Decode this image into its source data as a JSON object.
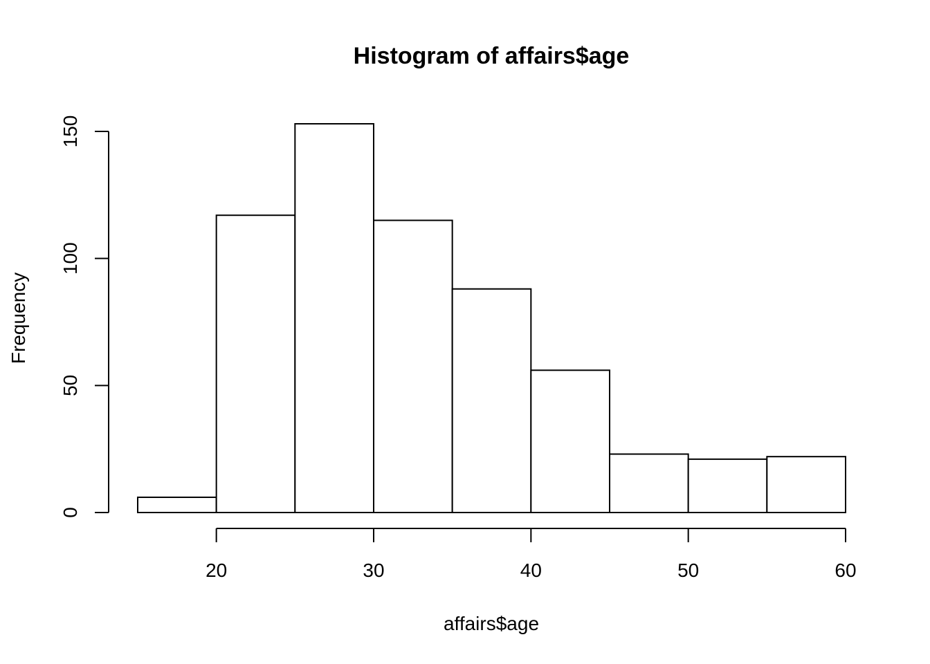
{
  "chart_data": {
    "type": "bar",
    "title": "Histogram of affairs$age",
    "xlabel": "affairs$age",
    "ylabel": "Frequency",
    "bins": [
      {
        "start": 15,
        "end": 20,
        "count": 6
      },
      {
        "start": 20,
        "end": 25,
        "count": 117
      },
      {
        "start": 25,
        "end": 30,
        "count": 153
      },
      {
        "start": 30,
        "end": 35,
        "count": 115
      },
      {
        "start": 35,
        "end": 40,
        "count": 88
      },
      {
        "start": 40,
        "end": 45,
        "count": 56
      },
      {
        "start": 45,
        "end": 50,
        "count": 23
      },
      {
        "start": 50,
        "end": 55,
        "count": 21
      },
      {
        "start": 55,
        "end": 60,
        "count": 22
      }
    ],
    "x_ticks": [
      20,
      30,
      40,
      50,
      60
    ],
    "y_ticks": [
      0,
      50,
      100,
      150
    ],
    "xlim": [
      15,
      60
    ],
    "ylim": [
      0,
      150
    ],
    "grid": false,
    "legend": "none",
    "colors": {
      "bar_fill": "#ffffff",
      "bar_stroke": "#000000"
    }
  }
}
